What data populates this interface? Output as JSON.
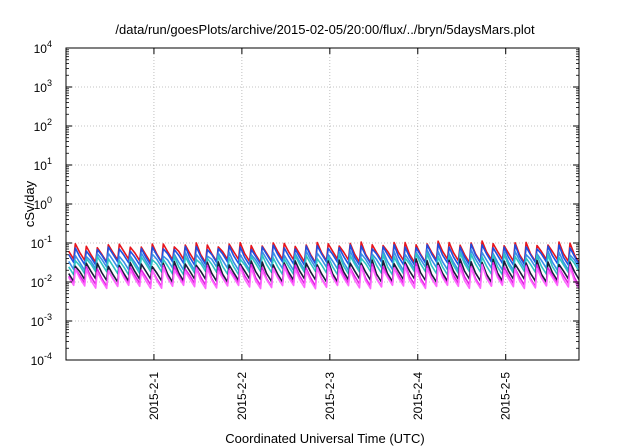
{
  "chart_data": {
    "type": "line",
    "title": "/data/run/goesPlots/archive/2015-02-05/20:00/flux/../bryn/5daysMars.plot",
    "xlabel": "Coordinated Universal Time (UTC)",
    "ylabel": "cSv/day",
    "y_scale": "log",
    "ylim": [
      0.0001,
      10000
    ],
    "y_ticks": [
      {
        "value": 0.0001,
        "base": "10",
        "exp": "-4"
      },
      {
        "value": 0.001,
        "base": "10",
        "exp": "-3"
      },
      {
        "value": 0.01,
        "base": "10",
        "exp": "-2"
      },
      {
        "value": 0.1,
        "base": "10",
        "exp": "-1"
      },
      {
        "value": 1,
        "base": "10",
        "exp": "0"
      },
      {
        "value": 10,
        "base": "10",
        "exp": "1"
      },
      {
        "value": 100,
        "base": "10",
        "exp": "2"
      },
      {
        "value": 1000,
        "base": "10",
        "exp": "3"
      },
      {
        "value": 10000,
        "base": "10",
        "exp": "4"
      }
    ],
    "xlim": [
      "2015-01-31T00:00",
      "2015-02-05T20:00"
    ],
    "x_ticks": [
      {
        "value": "2015-02-01T00:00",
        "label": "2015-2-1"
      },
      {
        "value": "2015-02-02T00:00",
        "label": "2015-2-2"
      },
      {
        "value": "2015-02-03T00:00",
        "label": "2015-2-3"
      },
      {
        "value": "2015-02-04T00:00",
        "label": "2015-2-4"
      },
      {
        "value": "2015-02-05T00:00",
        "label": "2015-2-5"
      }
    ],
    "grid": true,
    "cycle_hours": 3,
    "series": [
      {
        "color": "#e8141c",
        "peaks": [
          0.085,
          0.09,
          0.092,
          0.095,
          0.1,
          0.095
        ],
        "trough": 0.035
      },
      {
        "color": "#1f4fe0",
        "peaks": [
          0.07,
          0.075,
          0.078,
          0.08,
          0.085,
          0.08
        ],
        "trough": 0.03
      },
      {
        "color": "#3a8ee8",
        "peaks": [
          0.05,
          0.052,
          0.055,
          0.057,
          0.06,
          0.056
        ],
        "trough": 0.022
      },
      {
        "color": "#2ec4c4",
        "peaks": [
          0.04,
          0.042,
          0.044,
          0.046,
          0.05,
          0.046
        ],
        "trough": 0.017
      },
      {
        "color": "#1a1a3a",
        "peaks": [
          0.028,
          0.03,
          0.031,
          0.033,
          0.035,
          0.032
        ],
        "trough": 0.011
      },
      {
        "color": "#e020e0",
        "peaks": [
          0.022,
          0.024,
          0.025,
          0.026,
          0.028,
          0.025
        ],
        "trough": 0.0085
      },
      {
        "color": "#ff66ff",
        "peaks": [
          0.02,
          0.021,
          0.022,
          0.023,
          0.025,
          0.022
        ],
        "trough": 0.0075
      }
    ]
  }
}
